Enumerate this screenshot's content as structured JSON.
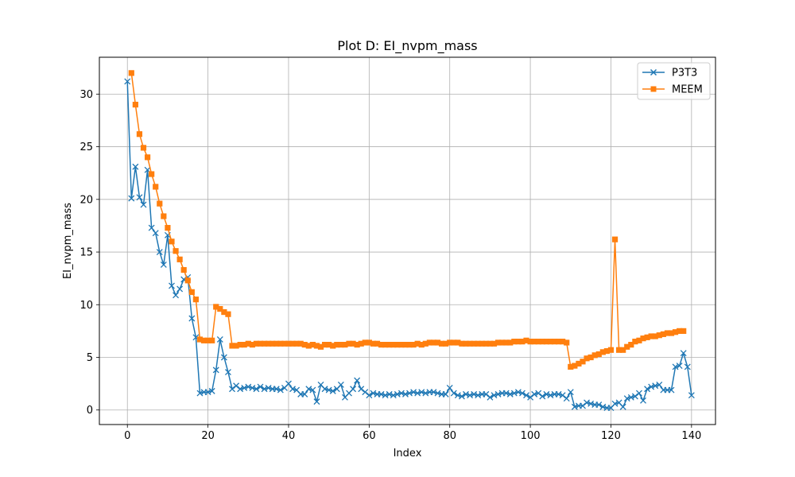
{
  "chart_data": {
    "type": "line",
    "title": "Plot D: EI_nvpm_mass",
    "xlabel": "Index",
    "ylabel": "EI_nvpm_mass",
    "xlim": [
      -6.95,
      145.95
    ],
    "ylim": [
      -1.38,
      33.5
    ],
    "xticks": [
      0,
      20,
      40,
      60,
      80,
      100,
      120,
      140
    ],
    "yticks": [
      0,
      5,
      10,
      15,
      20,
      25,
      30
    ],
    "grid": true,
    "legend_position": "top-right",
    "series": [
      {
        "name": "P3T3",
        "color": "#1f77b4",
        "marker": "x",
        "x_start": 0,
        "values": [
          31.2,
          20.1,
          23.1,
          20.2,
          19.5,
          22.8,
          17.3,
          16.8,
          15.0,
          13.8,
          16.6,
          11.8,
          10.9,
          11.5,
          12.4,
          12.6,
          8.7,
          6.9,
          1.6,
          1.7,
          1.7,
          1.8,
          3.8,
          6.7,
          5.0,
          3.6,
          2.0,
          2.3,
          2.0,
          2.1,
          2.2,
          2.1,
          2.0,
          2.2,
          2.0,
          2.1,
          2.0,
          2.0,
          1.9,
          2.1,
          2.5,
          2.0,
          1.9,
          1.5,
          1.5,
          2.0,
          1.9,
          0.8,
          2.4,
          2.0,
          1.9,
          1.8,
          2.0,
          2.4,
          1.2,
          1.6,
          2.0,
          2.8,
          2.0,
          1.7,
          1.4,
          1.6,
          1.5,
          1.5,
          1.4,
          1.5,
          1.4,
          1.5,
          1.6,
          1.5,
          1.6,
          1.7,
          1.6,
          1.7,
          1.6,
          1.7,
          1.7,
          1.6,
          1.5,
          1.5,
          2.1,
          1.6,
          1.4,
          1.3,
          1.5,
          1.4,
          1.5,
          1.4,
          1.5,
          1.5,
          1.2,
          1.4,
          1.5,
          1.6,
          1.6,
          1.5,
          1.6,
          1.7,
          1.6,
          1.4,
          1.2,
          1.5,
          1.6,
          1.3,
          1.5,
          1.4,
          1.5,
          1.5,
          1.4,
          1.1,
          1.7,
          0.3,
          0.4,
          0.4,
          0.7,
          0.6,
          0.5,
          0.5,
          0.3,
          0.2,
          0.2,
          0.6,
          0.7,
          0.3,
          1.1,
          1.2,
          1.3,
          1.6,
          0.9,
          2.0,
          2.2,
          2.3,
          2.4,
          1.9,
          1.9,
          1.9,
          4.1,
          4.2,
          5.4,
          4.1,
          1.4
        ]
      },
      {
        "name": "MEEM",
        "color": "#ff7f0e",
        "marker": "s",
        "x_start": 1,
        "values": [
          32.0,
          29.0,
          26.2,
          24.9,
          24.0,
          22.4,
          21.2,
          19.6,
          18.4,
          17.3,
          16.0,
          15.1,
          14.3,
          13.3,
          12.3,
          11.2,
          10.5,
          6.7,
          6.6,
          6.6,
          6.6,
          9.8,
          9.6,
          9.3,
          9.1,
          6.1,
          6.1,
          6.2,
          6.2,
          6.3,
          6.2,
          6.3,
          6.3,
          6.3,
          6.3,
          6.3,
          6.3,
          6.3,
          6.3,
          6.3,
          6.3,
          6.3,
          6.3,
          6.2,
          6.1,
          6.2,
          6.1,
          6.0,
          6.2,
          6.2,
          6.1,
          6.2,
          6.2,
          6.2,
          6.3,
          6.3,
          6.2,
          6.3,
          6.4,
          6.4,
          6.3,
          6.3,
          6.2,
          6.2,
          6.2,
          6.2,
          6.2,
          6.2,
          6.2,
          6.2,
          6.2,
          6.3,
          6.2,
          6.3,
          6.4,
          6.4,
          6.4,
          6.3,
          6.3,
          6.4,
          6.4,
          6.4,
          6.3,
          6.3,
          6.3,
          6.3,
          6.3,
          6.3,
          6.3,
          6.3,
          6.3,
          6.4,
          6.4,
          6.4,
          6.4,
          6.5,
          6.5,
          6.5,
          6.6,
          6.5,
          6.5,
          6.5,
          6.5,
          6.5,
          6.5,
          6.5,
          6.5,
          6.5,
          6.4,
          4.1,
          4.2,
          4.4,
          4.6,
          4.9,
          5.0,
          5.2,
          5.3,
          5.5,
          5.6,
          5.7,
          16.2,
          5.7,
          5.7,
          6.0,
          6.2,
          6.5,
          6.6,
          6.8,
          6.9,
          7.0,
          7.0,
          7.1,
          7.2,
          7.3,
          7.3,
          7.4,
          7.5,
          7.5
        ]
      }
    ]
  }
}
